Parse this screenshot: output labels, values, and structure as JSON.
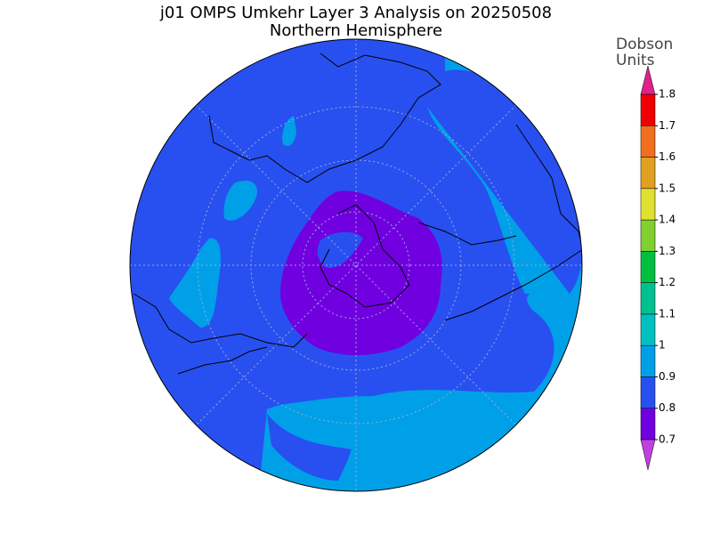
{
  "map": {
    "title": "j01 OMPS Umkehr Layer 3 Analysis on 20250508",
    "subtitle": "Northern Hemisphere",
    "colorbar": {
      "label": [
        "Dobson",
        "Units"
      ],
      "ticks": [
        0.7,
        0.8,
        0.9,
        1,
        1.1,
        1.2,
        1.3,
        1.4,
        1.5,
        1.6,
        1.7,
        1.8
      ],
      "colors": [
        "#7000e0",
        "#2850f0",
        "#00a0e8",
        "#00c0c0",
        "#00c090",
        "#00c040",
        "#80d030",
        "#e0e030",
        "#e0a020",
        "#f07020",
        "#f00000"
      ],
      "under_color": "#c040e0",
      "over_color": "#e0208c"
    }
  }
}
